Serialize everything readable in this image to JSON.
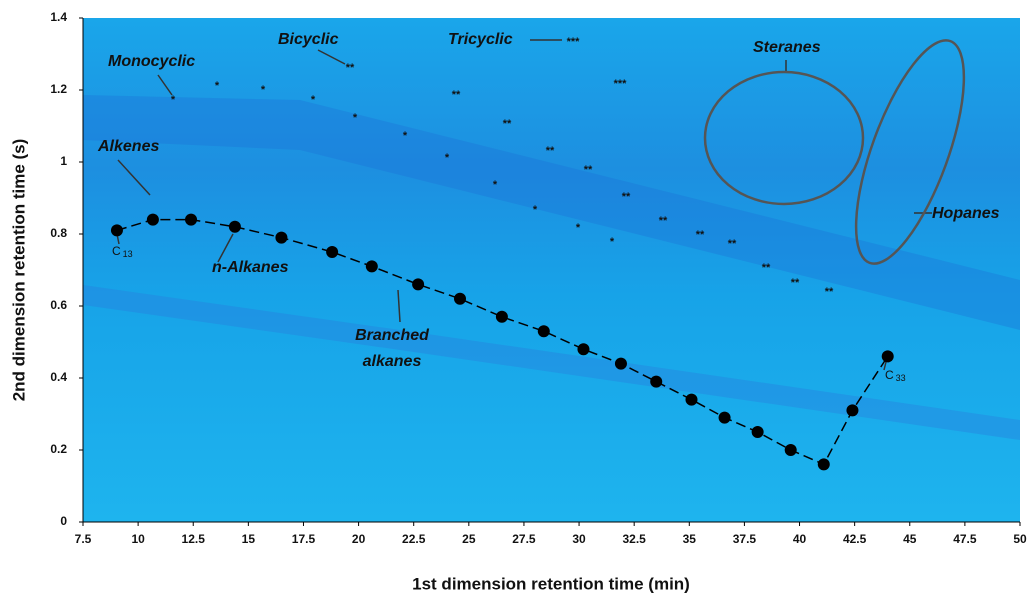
{
  "chart_data": {
    "type": "scatter",
    "x_label": "1st dimension retention time (min)",
    "y_label": "2nd dimension retention time (s)",
    "x": [
      9.04,
      10.67,
      12.4,
      14.39,
      16.5,
      18.8,
      20.6,
      22.7,
      24.6,
      26.5,
      28.4,
      30.2,
      31.9,
      33.5,
      35.1,
      36.6,
      38.1,
      39.6,
      41.1,
      42.4,
      44.0
    ],
    "values": [
      0.81,
      0.84,
      0.84,
      0.82,
      0.79,
      0.75,
      0.71,
      0.66,
      0.62,
      0.57,
      0.53,
      0.48,
      0.44,
      0.39,
      0.34,
      0.29,
      0.25,
      0.2,
      0.16,
      0.31,
      0.46
    ],
    "color": "#000000",
    "connect": true,
    "xlim": [
      7.5,
      50
    ],
    "ylim": [
      0,
      1.4
    ],
    "xticks": [
      7.5,
      10,
      12.5,
      15,
      17.5,
      20,
      22.5,
      25,
      27.5,
      30,
      32.5,
      35,
      37.5,
      40,
      42.5,
      45,
      47.5,
      50
    ],
    "yticks": [
      0,
      0.2,
      0.4,
      0.6,
      0.8,
      1,
      1.2,
      1.4
    ],
    "annotations": [
      "Alkenes",
      "Monocyclic",
      "Bicyclic",
      "Tricyclic",
      "Steranes",
      "Hopanes",
      "n-Alkanes",
      "Branched",
      "alkanes"
    ],
    "first_label": {
      "text": "C",
      "sub": "13"
    },
    "last_label": {
      "text": "C",
      "sub": "33"
    },
    "markers": [
      "*",
      "*",
      "*",
      "*",
      "*",
      "*",
      "*",
      "*",
      "*",
      "*",
      "*",
      "**",
      "**",
      "**",
      "**",
      "**",
      "**",
      "**",
      "**",
      "**",
      "**",
      "**",
      "**",
      "***",
      "***"
    ]
  }
}
